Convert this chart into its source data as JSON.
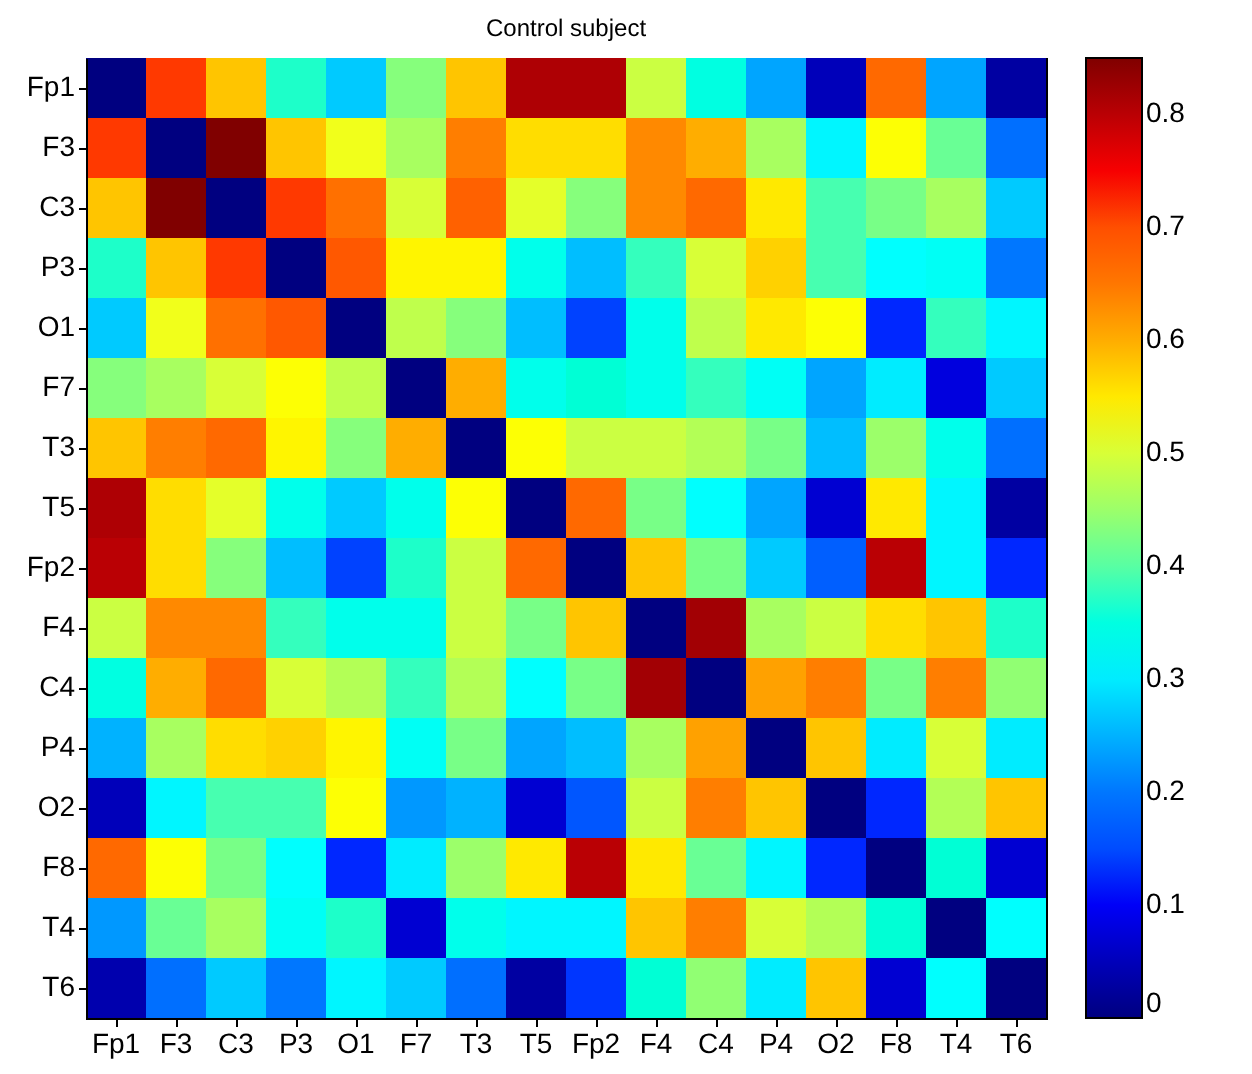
{
  "chart_data": {
    "type": "heatmap",
    "title": "Control subject",
    "categories": [
      "Fp1",
      "F3",
      "C3",
      "P3",
      "O1",
      "F7",
      "T3",
      "T5",
      "Fp2",
      "F4",
      "C4",
      "P4",
      "O2",
      "F8",
      "T4",
      "T6"
    ],
    "y_categories": [
      "Fp1",
      "F3",
      "C3",
      "P3",
      "O1",
      "F7",
      "T3",
      "T5",
      "Fp2",
      "F4",
      "C4",
      "P4",
      "O2",
      "F8",
      "T4",
      "T6"
    ],
    "cells": [
      [
        0,
        0.72,
        0.58,
        0.37,
        0.27,
        0.43,
        0.58,
        0.81,
        0.81,
        0.49,
        0.35,
        0.24,
        0.05,
        0.67,
        0.24,
        0.03
      ],
      [
        0.72,
        0,
        0.85,
        0.58,
        0.52,
        0.46,
        0.64,
        0.56,
        0.56,
        0.63,
        0.6,
        0.46,
        0.31,
        0.53,
        0.41,
        0.19
      ],
      [
        0.58,
        0.85,
        0,
        0.72,
        0.66,
        0.5,
        0.68,
        0.51,
        0.43,
        0.63,
        0.67,
        0.55,
        0.39,
        0.42,
        0.46,
        0.27
      ],
      [
        0.37,
        0.58,
        0.72,
        0,
        0.69,
        0.54,
        0.54,
        0.34,
        0.26,
        0.38,
        0.5,
        0.57,
        0.39,
        0.32,
        0.33,
        0.2
      ],
      [
        0.27,
        0.52,
        0.66,
        0.69,
        0,
        0.48,
        0.43,
        0.26,
        0.14,
        0.34,
        0.48,
        0.55,
        0.53,
        0.12,
        0.38,
        0.31
      ],
      [
        0.43,
        0.46,
        0.5,
        0.53,
        0.48,
        0,
        0.6,
        0.34,
        0.36,
        0.34,
        0.38,
        0.33,
        0.24,
        0.3,
        0.08,
        0.27
      ],
      [
        0.58,
        0.64,
        0.67,
        0.54,
        0.43,
        0.6,
        0,
        0.53,
        0.49,
        0.49,
        0.47,
        0.42,
        0.26,
        0.45,
        0.34,
        0.19
      ],
      [
        0.81,
        0.56,
        0.51,
        0.34,
        0.27,
        0.34,
        0.53,
        0,
        0.67,
        0.42,
        0.32,
        0.24,
        0.07,
        0.55,
        0.31,
        0.03
      ],
      [
        0.8,
        0.56,
        0.43,
        0.26,
        0.14,
        0.37,
        0.49,
        0.67,
        0,
        0.58,
        0.42,
        0.27,
        0.17,
        0.8,
        0.31,
        0.12
      ],
      [
        0.49,
        0.63,
        0.63,
        0.38,
        0.34,
        0.34,
        0.49,
        0.42,
        0.58,
        0,
        0.82,
        0.46,
        0.49,
        0.56,
        0.58,
        0.37
      ],
      [
        0.35,
        0.6,
        0.67,
        0.5,
        0.47,
        0.38,
        0.47,
        0.32,
        0.42,
        0.82,
        0,
        0.61,
        0.64,
        0.42,
        0.64,
        0.44
      ],
      [
        0.25,
        0.46,
        0.56,
        0.57,
        0.54,
        0.33,
        0.42,
        0.24,
        0.26,
        0.46,
        0.61,
        0,
        0.58,
        0.3,
        0.5,
        0.3
      ],
      [
        0.05,
        0.31,
        0.39,
        0.39,
        0.53,
        0.23,
        0.25,
        0.07,
        0.16,
        0.49,
        0.64,
        0.58,
        0,
        0.12,
        0.47,
        0.58
      ],
      [
        0.67,
        0.53,
        0.42,
        0.32,
        0.12,
        0.3,
        0.45,
        0.55,
        0.8,
        0.55,
        0.41,
        0.31,
        0.12,
        0,
        0.36,
        0.07
      ],
      [
        0.23,
        0.41,
        0.46,
        0.33,
        0.37,
        0.07,
        0.34,
        0.31,
        0.31,
        0.58,
        0.64,
        0.5,
        0.47,
        0.36,
        0,
        0.32
      ],
      [
        0.04,
        0.19,
        0.27,
        0.2,
        0.31,
        0.27,
        0.19,
        0.03,
        0.13,
        0.36,
        0.44,
        0.3,
        0.58,
        0.07,
        0.32,
        0
      ]
    ],
    "clim": [
      0,
      0.85
    ],
    "cticks": [
      0,
      0.1,
      0.2,
      0.3,
      0.4,
      0.5,
      0.6,
      0.7,
      0.8
    ]
  }
}
